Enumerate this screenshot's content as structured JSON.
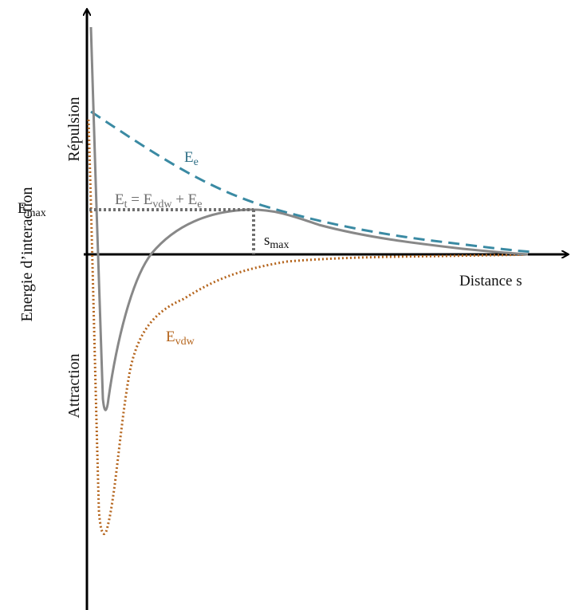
{
  "axes": {
    "y_title": "Energie d’interaction",
    "x_title": "Distance s",
    "repulsion_label": "Répulsion",
    "attraction_label": "Attraction"
  },
  "markers": {
    "emax": {
      "main": "E",
      "sub": "max"
    },
    "smax": {
      "main": "s",
      "sub": "max"
    }
  },
  "curves": {
    "electrostatic": {
      "main": "E",
      "sub": "e",
      "color": "#3a8aa3",
      "style": "dashed"
    },
    "vdw": {
      "main": "E",
      "sub": "vdw",
      "color": "#b5651d",
      "style": "dotted"
    },
    "total": {
      "parts": [
        {
          "main": "E",
          "sub": "t"
        },
        {
          "text": " = "
        },
        {
          "main": "E",
          "sub": "vdw"
        },
        {
          "text": " + "
        },
        {
          "main": "E",
          "sub": "e"
        }
      ],
      "color": "#888888",
      "style": "solid"
    }
  },
  "colors": {
    "axis": "#000000",
    "guide": "#707070"
  }
}
